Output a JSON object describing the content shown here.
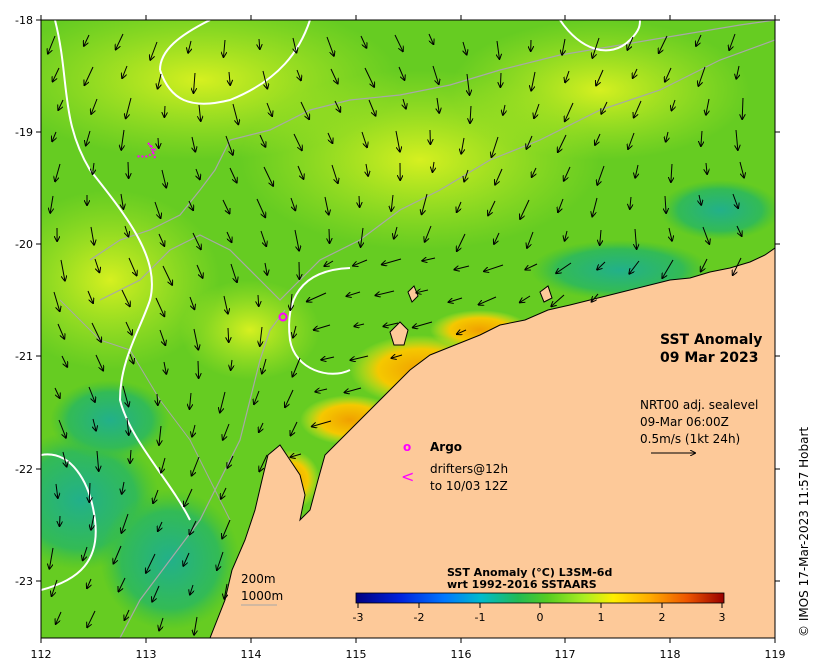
{
  "map": {
    "title_line1": "SST Anomaly",
    "title_line2": "09 Mar 2023",
    "x_ticks": [
      "112",
      "113",
      "114",
      "115",
      "116",
      "117",
      "118",
      "119"
    ],
    "y_ticks": [
      "-18",
      "-19",
      "-20",
      "-21",
      "-22",
      "-23"
    ],
    "current_info": {
      "line1": "NRT00 adj. sealevel",
      "line2": "09-Mar 06:00Z",
      "line3": "0.5m/s (1kt 24h)"
    },
    "legend": {
      "argo_symbol": "o",
      "argo_label": "Argo",
      "drifter_symbol": "<",
      "drifter_line1": "drifters@12h",
      "drifter_line2": "to 10/03 12Z",
      "argo_color": "#ff00ff"
    },
    "isobaths": {
      "label_200": "200m",
      "label_1000": "1000m"
    },
    "colorbar": {
      "title_line1": "SST Anomaly (°C) L3SM-6d",
      "title_line2": "wrt 1992-2016 SSTAARS",
      "ticks": [
        "-3",
        "-2",
        "-1",
        "0",
        "1",
        "2",
        "3"
      ]
    },
    "credit": "© IMOS 17-Mar-2023 11:57 Hobart",
    "colors": {
      "land": "#fdc999",
      "ocean_main": "#77dd22",
      "warm_anomaly": "#f0a000",
      "cool_anomaly": "#22bb66",
      "isobath": "#a8a8a8",
      "contour": "#ffffff"
    }
  }
}
